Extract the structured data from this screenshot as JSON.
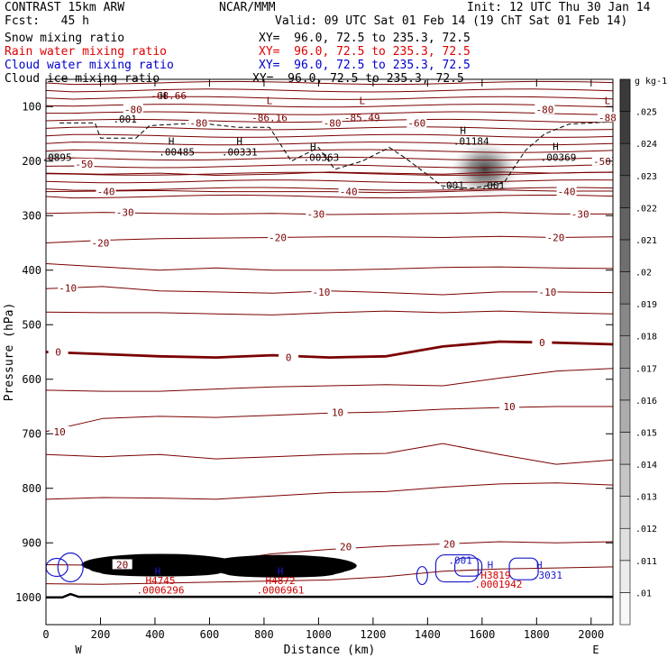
{
  "header": {
    "model": "CONTRAST 15km ARW",
    "org": "NCAR/MMM",
    "init": "Init: 12 UTC Thu 30 Jan 14",
    "fcst": "Fcst:   45 h",
    "valid": "Valid: 09 UTC Sat 01 Feb 14 (19 ChT Sat 01 Feb 14)",
    "fields": [
      {
        "name": "Snow mixing ratio",
        "xy": "XY=  96.0, 72.5 to 235.3, 72.5",
        "color": "#000000"
      },
      {
        "name": "Rain water mixing ratio",
        "xy": "XY=  96.0, 72.5 to 235.3, 72.5",
        "color": "#e00000"
      },
      {
        "name": "Cloud water mixing ratio",
        "xy": "XY=  96.0, 72.5 to 235.3, 72.5",
        "color": "#0000cc"
      },
      {
        "name": "Cloud ice mixing ratio",
        "xy": "XY=  96.0, 72.5 to 235.3, 72.5",
        "color": "#000000"
      }
    ]
  },
  "colors": {
    "temperature": "#7a0000",
    "cloud_water": "#1a1acc",
    "rain": "#d00000",
    "ice": "#000000"
  },
  "chart_data": {
    "type": "cross-section contour",
    "xlabel": "Distance (km)",
    "ylabel": "Pressure (hPa)",
    "xlim": [
      0,
      2080
    ],
    "ylim": [
      1050,
      50
    ],
    "x_ticks": [
      0,
      200,
      400,
      600,
      800,
      1000,
      1200,
      1400,
      1600,
      1800,
      2000
    ],
    "y_ticks": [
      100,
      200,
      300,
      400,
      500,
      600,
      700,
      800,
      900,
      1000
    ],
    "x_ends": {
      "left": "W",
      "right": "E"
    },
    "colorbar": {
      "unit": "g kg-1",
      "ticks": [
        ".01",
        ".011",
        ".012",
        ".013",
        ".014",
        ".015",
        ".016",
        ".017",
        ".018",
        ".019",
        ".02",
        ".021",
        ".022",
        ".023",
        ".024",
        ".025"
      ]
    },
    "temperature_labels": [
      {
        "text": "-80",
        "x": 320,
        "p": 105
      },
      {
        "text": "-80",
        "x": 1830,
        "p": 105
      },
      {
        "text": "-80",
        "x": 560,
        "p": 130
      },
      {
        "text": "-80",
        "x": 1050,
        "p": 130
      },
      {
        "text": "-60",
        "x": 1360,
        "p": 130
      },
      {
        "text": "-88",
        "x": 2060,
        "p": 120
      },
      {
        "text": "-50",
        "x": 140,
        "p": 205
      },
      {
        "text": "-50",
        "x": 2040,
        "p": 200
      },
      {
        "text": "-40",
        "x": 220,
        "p": 256
      },
      {
        "text": "-40",
        "x": 1110,
        "p": 256
      },
      {
        "text": "-40",
        "x": 1910,
        "p": 256
      },
      {
        "text": "-30",
        "x": 290,
        "p": 294
      },
      {
        "text": "-30",
        "x": 990,
        "p": 297
      },
      {
        "text": "-30",
        "x": 1960,
        "p": 297
      },
      {
        "text": "-20",
        "x": 200,
        "p": 350
      },
      {
        "text": "-20",
        "x": 850,
        "p": 340
      },
      {
        "text": "-20",
        "x": 1870,
        "p": 340
      },
      {
        "text": "-10",
        "x": 80,
        "p": 433
      },
      {
        "text": "-10",
        "x": 1010,
        "p": 440
      },
      {
        "text": "-10",
        "x": 1840,
        "p": 440
      },
      {
        "text": "0",
        "x": 45,
        "p": 550
      },
      {
        "text": "0",
        "x": 890,
        "p": 560
      },
      {
        "text": "0",
        "x": 1820,
        "p": 533
      },
      {
        "text": "10",
        "x": 50,
        "p": 696
      },
      {
        "text": "10",
        "x": 1070,
        "p": 661
      },
      {
        "text": "10",
        "x": 1700,
        "p": 650
      },
      {
        "text": "20",
        "x": 280,
        "p": 940
      },
      {
        "text": "20",
        "x": 1100,
        "p": 907
      },
      {
        "text": "20",
        "x": 1480,
        "p": 902
      }
    ],
    "extrema_labels": [
      {
        "text": "-68.66",
        "x": 450,
        "p": 80,
        "color": "#7a0000"
      },
      {
        "text": "L",
        "x": 820,
        "p": 89,
        "color": "#7a0000"
      },
      {
        "text": "-86.16",
        "x": 820,
        "p": 120,
        "color": "#7a0000"
      },
      {
        "text": "L",
        "x": 1160,
        "p": 89,
        "color": "#7a0000"
      },
      {
        "text": "-85.49",
        "x": 1160,
        "p": 120,
        "color": "#7a0000"
      },
      {
        "text": "L",
        "x": 2060,
        "p": 89,
        "color": "#7a0000"
      },
      {
        "text": "H",
        "x": 430,
        "p": 80,
        "color": "#000000"
      },
      {
        "text": "H",
        "x": 460,
        "p": 163,
        "color": "#000000"
      },
      {
        "text": ".00485",
        "x": 480,
        "p": 183,
        "color": "#000000"
      },
      {
        "text": "H",
        "x": 710,
        "p": 163,
        "color": "#000000"
      },
      {
        "text": ".00331",
        "x": 710,
        "p": 183,
        "color": "#000000"
      },
      {
        "text": "H",
        "x": 980,
        "p": 173,
        "color": "#000000"
      },
      {
        "text": ".00363",
        "x": 1010,
        "p": 193,
        "color": "#000000"
      },
      {
        "text": "H",
        "x": 1530,
        "p": 143,
        "color": "#000000"
      },
      {
        "text": ".01184",
        "x": 1560,
        "p": 163,
        "color": "#000000"
      },
      {
        "text": "H",
        "x": 1870,
        "p": 173,
        "color": "#000000"
      },
      {
        "text": ".00369",
        "x": 1880,
        "p": 193,
        "color": "#000000"
      },
      {
        "text": ".0895",
        "x": 40,
        "p": 193,
        "color": "#000000"
      },
      {
        "text": ".001",
        "x": 290,
        "p": 123,
        "color": "#000000"
      },
      {
        "text": ".001",
        "x": 1490,
        "p": 244,
        "color": "#000000"
      },
      {
        "text": ".001",
        "x": 1640,
        "p": 244,
        "color": "#000000"
      },
      {
        "text": "H",
        "x": 410,
        "p": 952,
        "color": "#1a1acc"
      },
      {
        "text": "H4745",
        "x": 420,
        "p": 969,
        "color": "#d00000"
      },
      {
        "text": ".0006296",
        "x": 420,
        "p": 986,
        "color": "#d00000"
      },
      {
        "text": "H",
        "x": 860,
        "p": 952,
        "color": "#1a1acc"
      },
      {
        "text": "H4872",
        "x": 860,
        "p": 969,
        "color": "#d00000"
      },
      {
        "text": ".0006961",
        "x": 860,
        "p": 986,
        "color": "#d00000"
      },
      {
        "text": ".001",
        "x": 1520,
        "p": 932,
        "color": "#1a1acc"
      },
      {
        "text": "H",
        "x": 1630,
        "p": 940,
        "color": "#1a1acc"
      },
      {
        "text": "H3819",
        "x": 1650,
        "p": 959,
        "color": "#d00000"
      },
      {
        "text": ".0001942",
        "x": 1660,
        "p": 976,
        "color": "#d00000"
      },
      {
        "text": "H",
        "x": 1810,
        "p": 940,
        "color": "#1a1acc"
      },
      {
        "text": ".3031",
        "x": 1840,
        "p": 959,
        "color": "#1a1acc"
      }
    ]
  }
}
